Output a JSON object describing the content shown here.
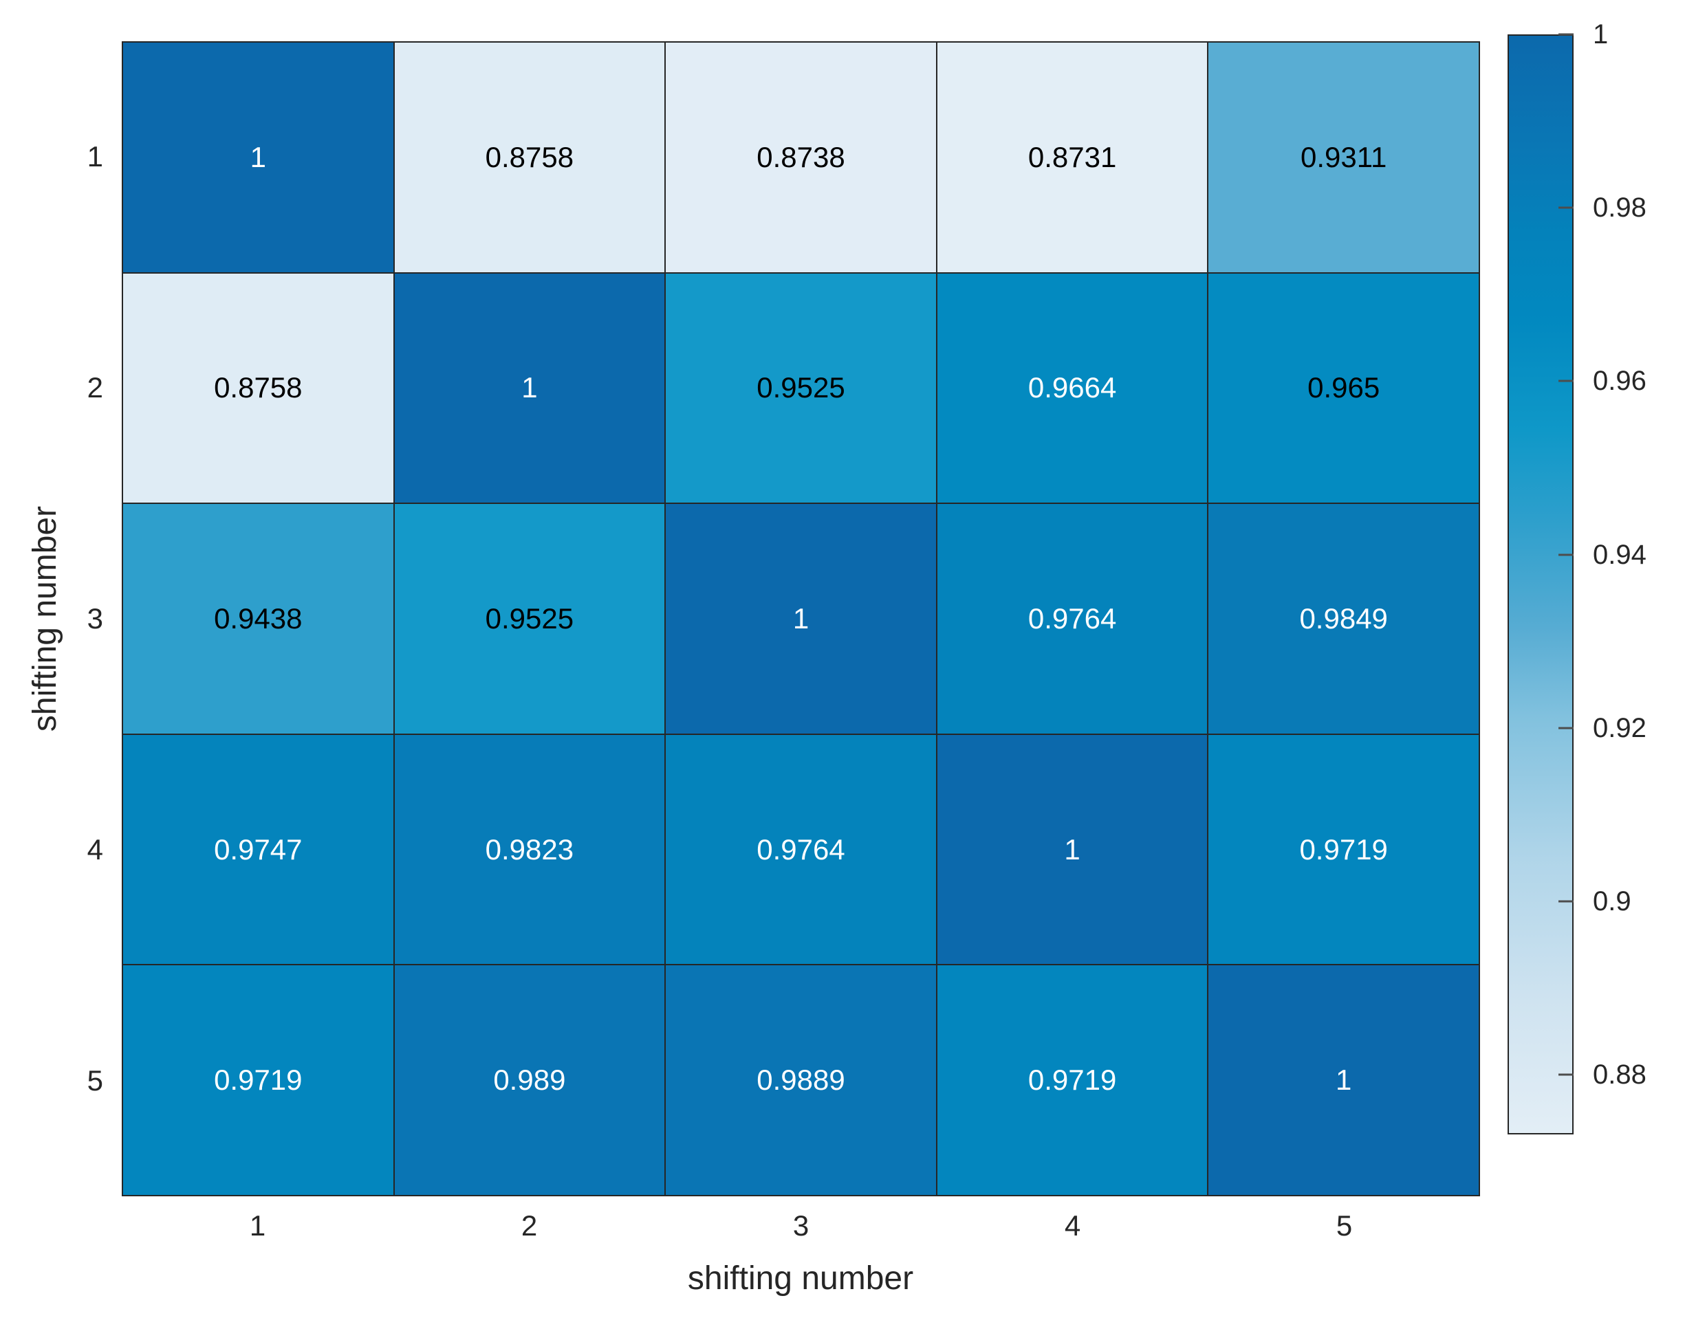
{
  "figure": {
    "background": "#ffffff"
  },
  "chart_data": {
    "type": "heatmap",
    "title": "",
    "xlabel": "shifting number",
    "ylabel": "shifting number",
    "x_categories": [
      "1",
      "2",
      "3",
      "4",
      "5"
    ],
    "y_categories": [
      "1",
      "2",
      "3",
      "4",
      "5"
    ],
    "values": [
      [
        1,
        0.8758,
        0.8738,
        0.8731,
        0.9311
      ],
      [
        0.8758,
        1,
        0.9525,
        0.9664,
        0.965
      ],
      [
        0.9438,
        0.9525,
        1,
        0.9764,
        0.9849
      ],
      [
        0.9747,
        0.9823,
        0.9764,
        1,
        0.9719
      ],
      [
        0.9719,
        0.989,
        0.9889,
        0.9719,
        1
      ]
    ],
    "cell_text_colors": [
      [
        "#ffffff",
        "#000000",
        "#000000",
        "#000000",
        "#000000"
      ],
      [
        "#000000",
        "#ffffff",
        "#000000",
        "#ffffff",
        "#000000"
      ],
      [
        "#000000",
        "#000000",
        "#ffffff",
        "#ffffff",
        "#ffffff"
      ],
      [
        "#ffffff",
        "#ffffff",
        "#ffffff",
        "#ffffff",
        "#ffffff"
      ],
      [
        "#ffffff",
        "#ffffff",
        "#ffffff",
        "#ffffff",
        "#ffffff"
      ]
    ],
    "color_scale": {
      "vmin": 0.8731,
      "vmax": 1,
      "stops": [
        {
          "t": 0.0,
          "color": "#e3eef6"
        },
        {
          "t": 0.12,
          "color": "#cfe3f0"
        },
        {
          "t": 0.25,
          "color": "#b0d5e9"
        },
        {
          "t": 0.38,
          "color": "#81c1de"
        },
        {
          "t": 0.46,
          "color": "#57acd3"
        },
        {
          "t": 0.56,
          "color": "#2d9fcc"
        },
        {
          "t": 0.64,
          "color": "#0f98c8"
        },
        {
          "t": 0.74,
          "color": "#0289c0"
        },
        {
          "t": 0.82,
          "color": "#0482bb"
        },
        {
          "t": 0.9,
          "color": "#0a77b5"
        },
        {
          "t": 1.0,
          "color": "#0c69ac"
        }
      ]
    },
    "colorbar_ticks": [
      1,
      0.98,
      0.96,
      0.94,
      0.92,
      0.9,
      0.88
    ],
    "grid_line_color": "#262626",
    "axis_text_color": "#262626",
    "legend_position": "right-colorbar",
    "grid_visible": true
  }
}
